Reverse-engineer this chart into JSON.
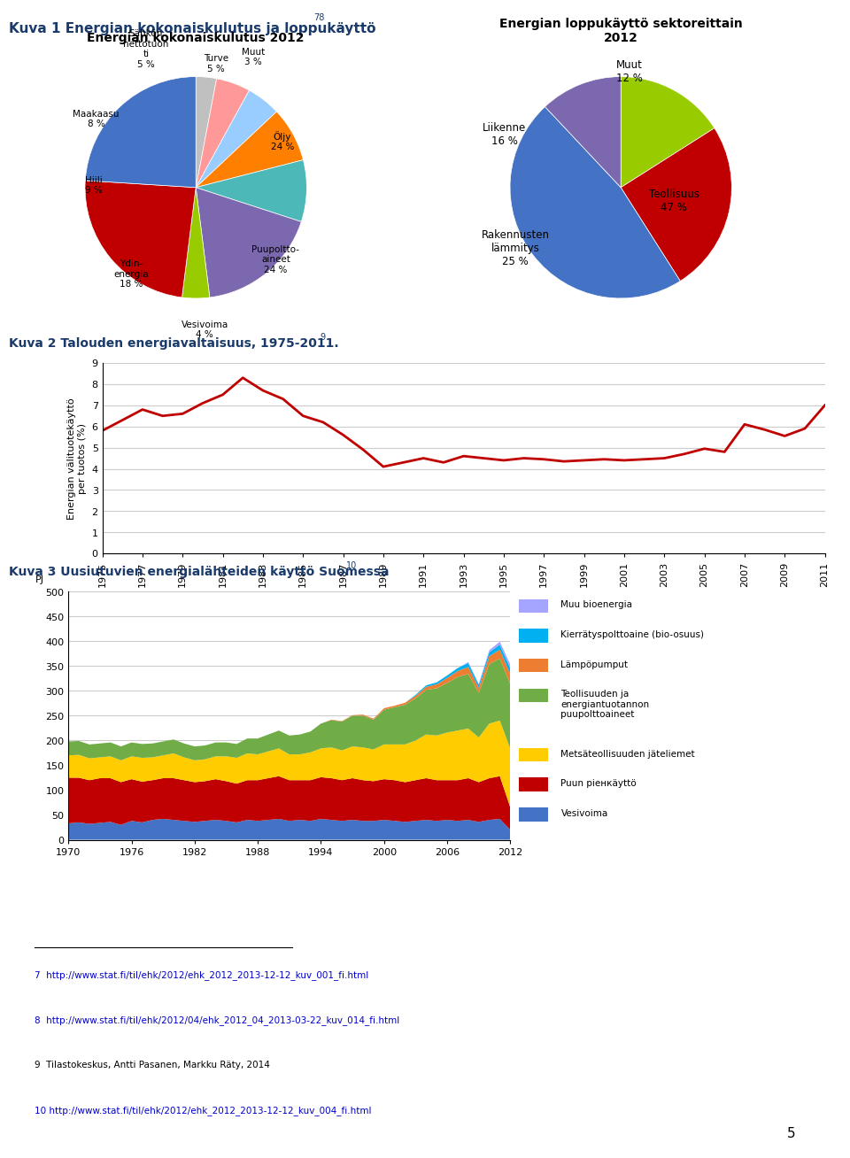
{
  "page_title": "Kuva 1 Energian kokonaiskulutus ja loppukäyttö",
  "page_title_super": "78",
  "background_color": "#ffffff",
  "pie1_title": "Energian kokonaiskulutus 2012",
  "pie1_sizes": [
    3,
    5,
    5,
    8,
    9,
    18,
    4,
    24,
    24
  ],
  "pie1_colors": [
    "#c0c0c0",
    "#ff9999",
    "#99ccff",
    "#ff8000",
    "#4db8b8",
    "#7b68ae",
    "#99cc00",
    "#c00000",
    "#4472c4"
  ],
  "pie2_title": "Energian loppukäyttö sektoreittain\n2012",
  "pie2_sizes": [
    16,
    25,
    47,
    12
  ],
  "pie2_colors": [
    "#99cc00",
    "#c00000",
    "#4472c4",
    "#7b68ae"
  ],
  "line_title": "Kuva 2 Talouden energiavaltaisuus, 1975-2011.",
  "line_title_super": "9",
  "line_ylabel": "Energian välituotekäyttö\nper tuotos (%)",
  "line_years_full": [
    1975,
    1976,
    1977,
    1978,
    1979,
    1980,
    1981,
    1982,
    1983,
    1984,
    1985,
    1986,
    1987,
    1988,
    1989,
    1990,
    1991,
    1992,
    1993,
    1994,
    1995,
    1996,
    1997,
    1998,
    1999,
    2000,
    2001,
    2002,
    2003,
    2004,
    2005,
    2006,
    2007,
    2008,
    2009,
    2010,
    2011
  ],
  "line_values_full": [
    5.8,
    6.3,
    6.8,
    6.5,
    6.6,
    7.1,
    7.5,
    8.3,
    7.7,
    7.3,
    6.5,
    6.2,
    5.6,
    4.9,
    4.1,
    4.3,
    4.5,
    4.3,
    4.6,
    4.5,
    4.4,
    4.5,
    4.45,
    4.35,
    4.4,
    4.45,
    4.4,
    4.45,
    4.5,
    4.7,
    4.95,
    4.8,
    6.1,
    5.85,
    5.55,
    5.9,
    7.0
  ],
  "line_color": "#c00000",
  "line_ylim": [
    0,
    9
  ],
  "line_yticks": [
    0,
    1,
    2,
    3,
    4,
    5,
    6,
    7,
    8,
    9
  ],
  "line_xticks": [
    1975,
    1977,
    1979,
    1981,
    1983,
    1985,
    1987,
    1989,
    1991,
    1993,
    1995,
    1997,
    1999,
    2001,
    2003,
    2005,
    2007,
    2009,
    2011
  ],
  "area_title": "Kuva 3 Uusiutuvien energialähteiden käyttö Suomessa",
  "area_title_super": "10",
  "area_ylabel": "PJ",
  "area_years": [
    1970,
    1971,
    1972,
    1973,
    1974,
    1975,
    1976,
    1977,
    1978,
    1979,
    1980,
    1981,
    1982,
    1983,
    1984,
    1985,
    1986,
    1987,
    1988,
    1989,
    1990,
    1991,
    1992,
    1993,
    1994,
    1995,
    1996,
    1997,
    1998,
    1999,
    2000,
    2001,
    2002,
    2003,
    2004,
    2005,
    2006,
    2007,
    2008,
    2009,
    2010,
    2011,
    2012
  ],
  "area_vesivoima": [
    33,
    35,
    32,
    34,
    36,
    30,
    38,
    35,
    40,
    42,
    40,
    38,
    36,
    38,
    40,
    38,
    35,
    40,
    38,
    40,
    42,
    38,
    40,
    38,
    42,
    40,
    38,
    40,
    38,
    38,
    40,
    38,
    36,
    38,
    40,
    38,
    40,
    38,
    40,
    36,
    40,
    42,
    20
  ],
  "area_puun_pienkaytt": [
    92,
    90,
    88,
    90,
    88,
    86,
    84,
    82,
    80,
    82,
    84,
    82,
    80,
    80,
    82,
    80,
    78,
    80,
    82,
    84,
    86,
    82,
    80,
    82,
    84,
    84,
    82,
    84,
    82,
    80,
    82,
    82,
    80,
    82,
    84,
    82,
    80,
    82,
    84,
    80,
    84,
    86,
    45
  ],
  "area_metsateollisuus_data": [
    45,
    46,
    44,
    42,
    44,
    44,
    46,
    48,
    46,
    46,
    50,
    46,
    44,
    44,
    46,
    50,
    52,
    54,
    52,
    54,
    56,
    52,
    52,
    56,
    58,
    62,
    60,
    64,
    66,
    64,
    70,
    72,
    76,
    80,
    88,
    90,
    96,
    100,
    100,
    90,
    110,
    112,
    118
  ],
  "area_teollisuus_data": [
    28,
    28,
    28,
    28,
    28,
    28,
    28,
    28,
    28,
    28,
    28,
    28,
    28,
    28,
    28,
    28,
    28,
    30,
    32,
    34,
    36,
    38,
    40,
    42,
    50,
    55,
    58,
    62,
    64,
    60,
    70,
    75,
    80,
    85,
    90,
    95,
    100,
    108,
    110,
    90,
    120,
    125,
    130
  ],
  "area_lampopumput_data": [
    0,
    0,
    0,
    0,
    0,
    0,
    0,
    0,
    0,
    0,
    0,
    0,
    0,
    0,
    0,
    0,
    0,
    0,
    0,
    0,
    0,
    0,
    0,
    0,
    0,
    1,
    1,
    1,
    2,
    2,
    3,
    3,
    4,
    5,
    6,
    8,
    10,
    12,
    14,
    10,
    16,
    18,
    20
  ],
  "area_kierratys_data": [
    0,
    0,
    0,
    0,
    0,
    0,
    0,
    0,
    0,
    0,
    0,
    0,
    0,
    0,
    0,
    0,
    0,
    0,
    0,
    0,
    0,
    0,
    0,
    0,
    0,
    0,
    0,
    0,
    0,
    0,
    0,
    0,
    0,
    2,
    3,
    4,
    5,
    6,
    8,
    6,
    8,
    10,
    12
  ],
  "area_muu_bioenergia_data": [
    0,
    0,
    0,
    0,
    0,
    0,
    0,
    0,
    0,
    0,
    0,
    0,
    0,
    0,
    0,
    0,
    0,
    0,
    0,
    0,
    0,
    0,
    0,
    0,
    0,
    0,
    0,
    0,
    0,
    0,
    0,
    0,
    0,
    0,
    0,
    0,
    0,
    0,
    2,
    2,
    4,
    6,
    8
  ],
  "area_colors": [
    "#4472c4",
    "#c00000",
    "#ffcc00",
    "#70ad47",
    "#ed7d31",
    "#00b0f0",
    "#a5a5ff"
  ],
  "area_xlim": [
    1970,
    2012
  ],
  "area_ylim": [
    0,
    500
  ],
  "area_yticks": [
    0,
    50,
    100,
    150,
    200,
    250,
    300,
    350,
    400,
    450,
    500
  ],
  "area_xticks": [
    1970,
    1976,
    1982,
    1988,
    1994,
    2000,
    2006,
    2012
  ],
  "footnotes": [
    "7  http://www.stat.fi/til/ehk/2012/ehk_2012_2013-12-12_kuv_001_fi.html",
    "8  http://www.stat.fi/til/ehk/2012/04/ehk_2012_04_2013-03-22_kuv_014_fi.html",
    "9  Tilastokeskus, Antti Pasanen, Markku Räty, 2014",
    "10 http://www.stat.fi/til/ehk/2012/ehk_2012_2013-12-12_kuv_004_fi.html"
  ],
  "page_num": "5"
}
